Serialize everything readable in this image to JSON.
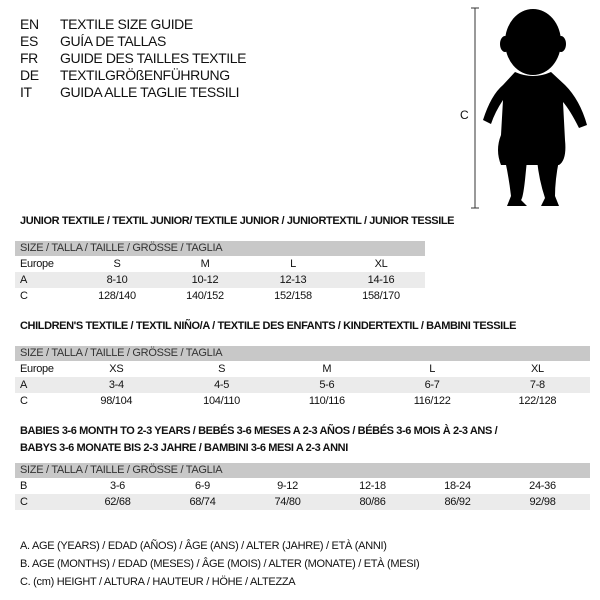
{
  "languages": [
    {
      "code": "EN",
      "title": "TEXTILE SIZE GUIDE"
    },
    {
      "code": "ES",
      "title": "GUÍA DE TALLAS"
    },
    {
      "code": "FR",
      "title": "GUIDE DES TAILLES TEXTILE"
    },
    {
      "code": "DE",
      "title": "TEXTILGRÖßENFÜHRUNG"
    },
    {
      "code": "IT",
      "title": "GUIDA ALLE TAGLIE TESSILI"
    }
  ],
  "figure": {
    "measure_label": "C"
  },
  "tables": [
    {
      "title": "JUNIOR TEXTILE / TEXTIL JUNIOR/ TEXTILE JUNIOR / JUNIORTEXTIL / JUNIOR TESSILE",
      "header": "SIZE / TALLA / TAILLE / GRÖSSE / TAGLIA",
      "rows": [
        {
          "label": "Europe",
          "values": [
            "S",
            "M",
            "L",
            "XL"
          ]
        },
        {
          "label": "A",
          "values": [
            "8-10",
            "10-12",
            "12-13",
            "14-16"
          ]
        },
        {
          "label": "C",
          "values": [
            "128/140",
            "140/152",
            "152/158",
            "158/170"
          ]
        }
      ]
    },
    {
      "title": "CHILDREN'S TEXTILE / TEXTIL NIÑO/A / TEXTILE DES ENFANTS / KINDERTEXTIL / BAMBINI TESSILE",
      "header": "SIZE / TALLA / TAILLE / GRÖSSE / TAGLIA",
      "rows": [
        {
          "label": "Europe",
          "values": [
            "XS",
            "S",
            "M",
            "L",
            "XL"
          ]
        },
        {
          "label": "A",
          "values": [
            "3-4",
            "4-5",
            "5-6",
            "6-7",
            "7-8"
          ]
        },
        {
          "label": "C",
          "values": [
            "98/104",
            "104/110",
            "110/116",
            "116/122",
            "122/128"
          ]
        }
      ]
    },
    {
      "title": "BABIES 3-6 MONTH TO 2-3 YEARS / BEBÉS 3-6 MESES A 2-3 AÑOS / BÉBÉS 3-6 MOIS À 2-3 ANS /",
      "title2": "BABYS 3-6 MONATE BIS 2-3 JAHRE / BAMBINI 3-6 MESI A 2-3 ANNI",
      "header": "SIZE / TALLA / TAILLE / GRÖSSE / TAGLIA",
      "rows": [
        {
          "label": "B",
          "values": [
            "3-6",
            "6-9",
            "9-12",
            "12-18",
            "18-24",
            "24-36"
          ]
        },
        {
          "label": "C",
          "values": [
            "62/68",
            "68/74",
            "74/80",
            "80/86",
            "86/92",
            "92/98"
          ]
        }
      ]
    }
  ],
  "legend": [
    "A. AGE (YEARS) / EDAD (AÑOS) / ÂGE (ANS) / ALTER (JAHRE) / ETÀ (ANNI)",
    "B. AGE (MONTHS) / EDAD (MESES) / ÂGE (MOIS) / ALTER (MONATE) / ETÀ (MESI)",
    "C. (cm) HEIGHT / ALTURA / HAUTEUR / HÖHE / ALTEZZA"
  ]
}
